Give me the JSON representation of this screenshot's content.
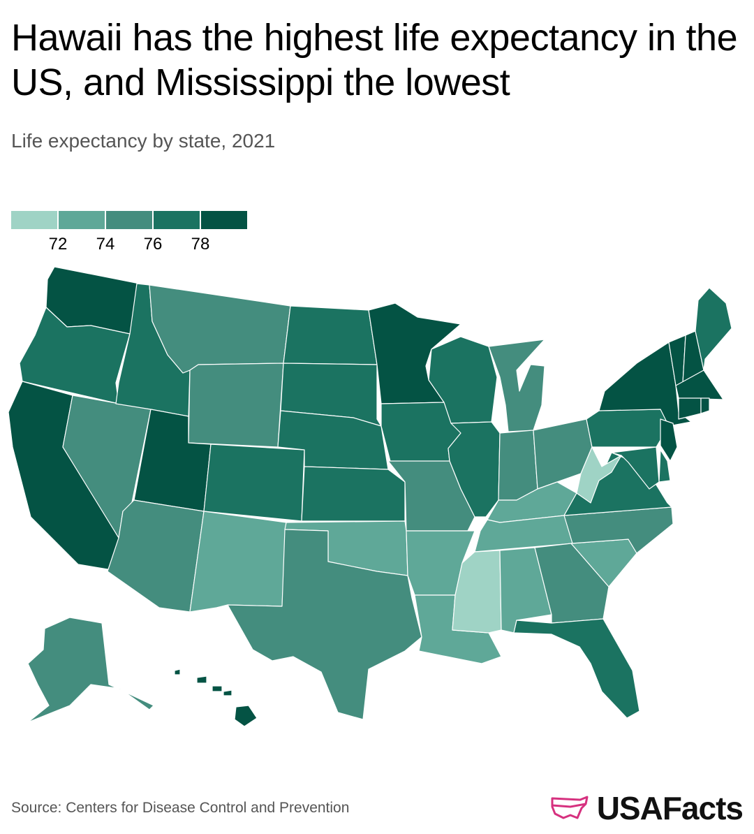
{
  "header": {
    "title": "Hawaii has the highest life expectancy in the US, and Mississippi the lowest",
    "subtitle": "Life expectancy by state, 2021"
  },
  "legend": {
    "ticks": [
      "72",
      "74",
      "76",
      "78"
    ],
    "colors": [
      "#9fd3c5",
      "#5fa898",
      "#448d7e",
      "#1b7361",
      "#045344"
    ]
  },
  "footer": {
    "source": "Source: Centers for Disease Control and Prevention",
    "brand": "USAFacts",
    "brand_color": "#d6317f"
  },
  "chart_data": {
    "type": "choropleth",
    "bins": [
      {
        "label": "< 72",
        "color": "#9fd3c5"
      },
      {
        "label": "72–74",
        "color": "#5fa898"
      },
      {
        "label": "74–76",
        "color": "#448d7e"
      },
      {
        "label": "76–78",
        "color": "#1b7361"
      },
      {
        "label": "> 78",
        "color": "#045344"
      }
    ],
    "states": {
      "WA": 4,
      "OR": 3,
      "CA": 4,
      "NV": 2,
      "ID": 3,
      "MT": 2,
      "WY": 2,
      "UT": 4,
      "AZ": 2,
      "CO": 3,
      "NM": 1,
      "ND": 3,
      "SD": 3,
      "NE": 3,
      "KS": 3,
      "OK": 1,
      "TX": 2,
      "MN": 4,
      "IA": 3,
      "MO": 2,
      "AR": 1,
      "LA": 1,
      "WI": 3,
      "IL": 3,
      "MI": 2,
      "IN": 2,
      "OH": 2,
      "KY": 1,
      "TN": 1,
      "MS": 0,
      "AL": 1,
      "GA": 2,
      "FL": 3,
      "SC": 1,
      "NC": 2,
      "VA": 3,
      "WV": 0,
      "PA": 3,
      "NY": 4,
      "VT": 4,
      "NH": 4,
      "ME": 3,
      "MA": 4,
      "RI": 4,
      "CT": 4,
      "NJ": 4,
      "DE": 3,
      "MD": 3,
      "AK": 2,
      "HI": 4
    }
  }
}
